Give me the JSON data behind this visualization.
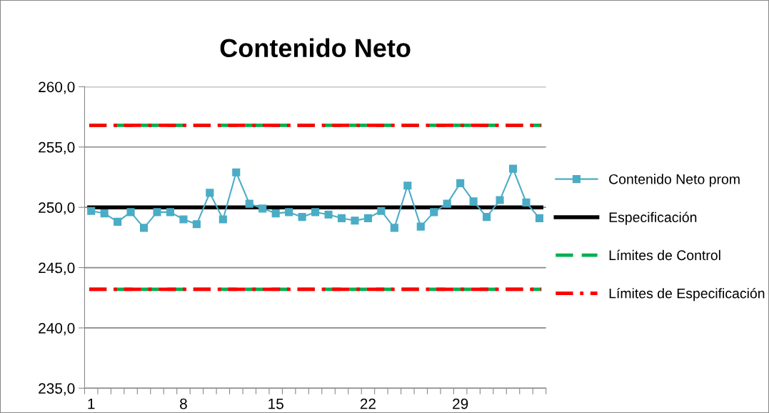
{
  "chart_data": {
    "type": "line",
    "title": "Contenido Neto",
    "categories": [
      "1",
      null,
      null,
      null,
      null,
      null,
      null,
      "8",
      null,
      null,
      null,
      null,
      null,
      null,
      "15",
      null,
      null,
      null,
      null,
      null,
      null,
      "22",
      null,
      null,
      null,
      null,
      null,
      null,
      "29",
      null,
      null,
      null,
      null,
      null,
      null
    ],
    "series": [
      {
        "name": "Contenido Neto prom",
        "color": "#4bacc6",
        "marker": "square",
        "values": [
          249.7,
          249.5,
          248.8,
          249.6,
          248.3,
          249.6,
          249.6,
          249.0,
          248.6,
          251.2,
          249.0,
          252.9,
          250.3,
          249.9,
          249.5,
          249.6,
          249.2,
          249.6,
          249.4,
          249.1,
          248.9,
          249.1,
          249.7,
          248.3,
          251.8,
          248.4,
          249.6,
          250.3,
          252.0,
          250.5,
          249.2,
          250.6,
          253.2,
          250.4,
          249.1
        ]
      }
    ],
    "ref_lines": [
      {
        "axis": "y",
        "value": 250.0,
        "label": "Especificación",
        "color": "#000000",
        "line_style": "solid"
      },
      {
        "axis": "y",
        "value": 256.8,
        "label": "Límites de Control",
        "color": "#00b050",
        "line_style": "dashed"
      },
      {
        "axis": "y",
        "value": 243.2,
        "color": "#00b050",
        "line_style": "dashed"
      },
      {
        "axis": "y",
        "value": 256.8,
        "label": "Límites de Especificación",
        "color": "#ff0000",
        "line_style": "dashdot"
      },
      {
        "axis": "y",
        "value": 243.2,
        "color": "#ff0000",
        "line_style": "dashdot"
      }
    ],
    "ylim": [
      235.0,
      260.0
    ],
    "yticks": [
      {
        "value": 235.0,
        "label": "235,0"
      },
      {
        "value": 240.0,
        "label": "240,0"
      },
      {
        "value": 245.0,
        "label": "245,0"
      },
      {
        "value": 250.0,
        "label": "250,0"
      },
      {
        "value": 255.0,
        "label": "255,0"
      },
      {
        "value": 260.0,
        "label": "260,0"
      }
    ],
    "grid": "y",
    "legend": "right"
  }
}
